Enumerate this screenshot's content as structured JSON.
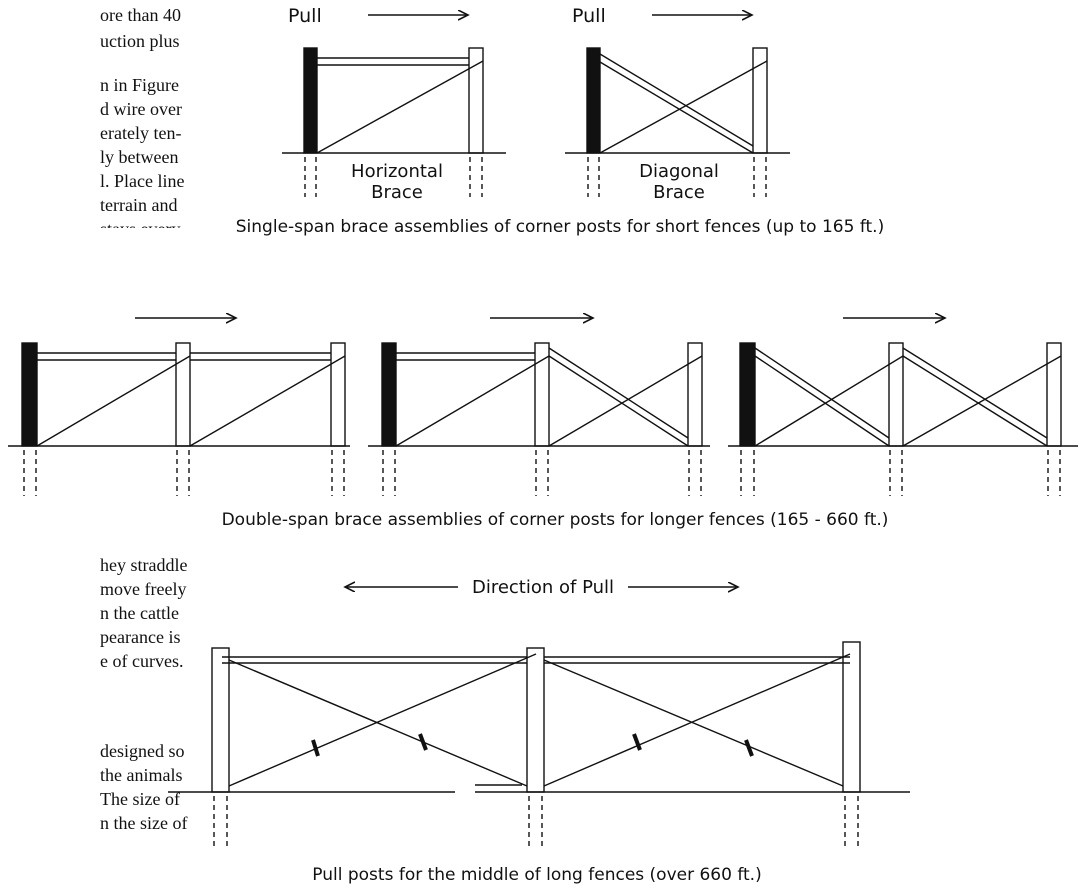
{
  "body_text_top": [
    "ore than 40",
    "uction plus",
    "n in Figure",
    "d wire over",
    "erately ten-",
    "ly between",
    "l. Place line",
    "terrain and",
    "stays every"
  ],
  "body_text_bottom": [
    "hey straddle",
    "move freely",
    "n the cattle",
    "pearance is",
    "e of curves.",
    "designed so",
    "the animals",
    "The size of",
    "n the size of"
  ],
  "labels": {
    "pull_1": "Pull",
    "pull_2": "Pull",
    "horizontal_line1": "Horizontal",
    "horizontal_line2": "Brace",
    "diagonal_line1": "Diagonal",
    "diagonal_line2": "Brace",
    "direction_of_pull": "Direction of Pull"
  },
  "captions": {
    "single_span": "Single-span brace assemblies of corner posts for short fences (up to 165 ft.)",
    "double_span": "Double-span brace assemblies of corner posts for longer fences (165 - 660 ft.)",
    "pull_posts": "Pull posts for the middle of long fences (over 660 ft.)"
  }
}
